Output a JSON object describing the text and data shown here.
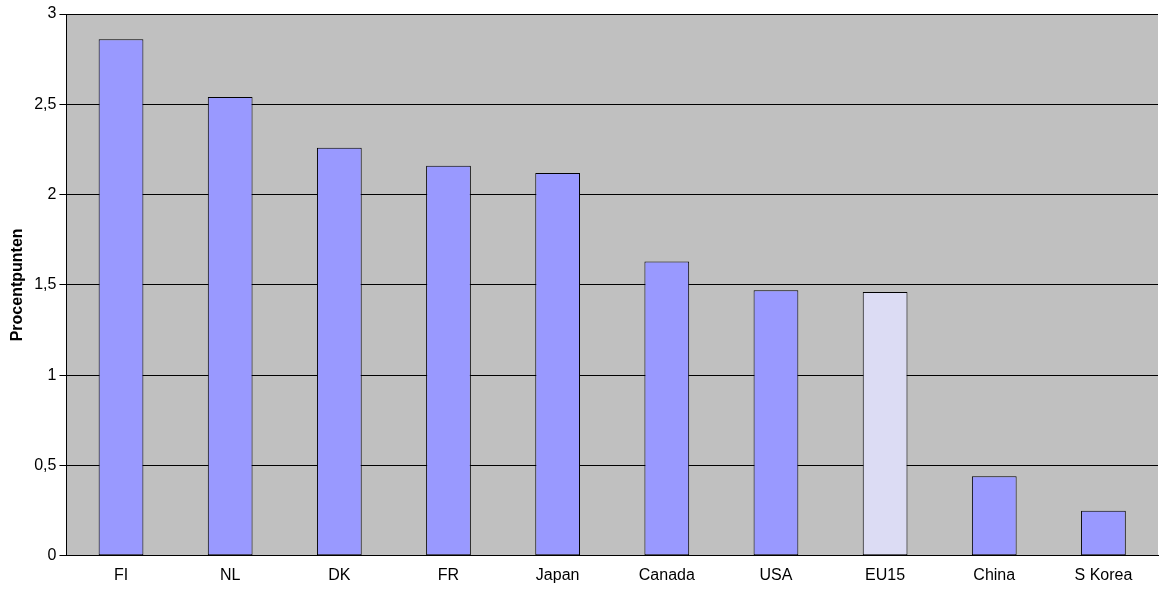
{
  "chart_data": {
    "type": "bar",
    "ylabel": "Procentpunten",
    "categories": [
      "FI",
      "NL",
      "DK",
      "FR",
      "Japan",
      "Canada",
      "USA",
      "EU15",
      "China",
      "S Korea"
    ],
    "values": [
      2.86,
      2.54,
      2.26,
      2.16,
      2.12,
      1.63,
      1.47,
      1.46,
      0.44,
      0.25
    ],
    "colors": [
      "#9999ff",
      "#9999ff",
      "#9999ff",
      "#9999ff",
      "#9999ff",
      "#9999ff",
      "#9999ff",
      "#dcdcf4",
      "#9999ff",
      "#9999ff"
    ],
    "ylim": [
      0,
      3
    ],
    "yticks": [
      0,
      {
        "value": 0.5,
        "label": "0,5"
      },
      1,
      {
        "value": 1.5,
        "label": "1,5"
      },
      2,
      {
        "value": 2.5,
        "label": "2,5"
      },
      3
    ],
    "grid": "y",
    "legend": false
  }
}
